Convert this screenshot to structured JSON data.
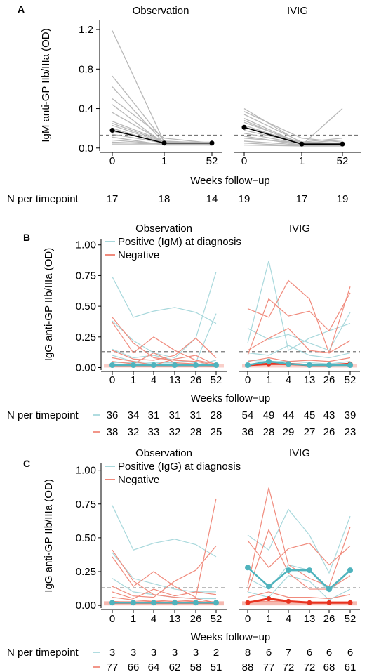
{
  "chart_data": [
    {
      "type": "line",
      "panel": "A",
      "facets": [
        "Observation",
        "IVIG"
      ],
      "xlabel": "Weeks follow−up",
      "ylabel": "IgM anti-GP IIb/IIIa (OD)",
      "x": [
        "0",
        "1",
        "52"
      ],
      "yticks": [
        "0.0",
        "0.4",
        "0.8",
        "1.2"
      ],
      "ylim": [
        -0.03,
        1.3
      ],
      "threshold": 0.13,
      "n_label": "N per timepoint",
      "n_counts": [
        [
          "17",
          "18",
          "14",
          "19",
          "17",
          "19"
        ]
      ],
      "median": {
        "Observation": [
          0.18,
          0.05,
          0.05
        ],
        "IVIG": [
          0.21,
          0.04,
          0.04
        ]
      },
      "individual": {
        "Observation": [
          [
            1.19,
            0.06,
            0.05
          ],
          [
            0.73,
            0.07,
            0.04
          ],
          [
            0.62,
            0.05,
            0.04
          ],
          [
            0.5,
            0.1,
            0.05
          ],
          [
            0.44,
            0.04,
            0.04
          ],
          [
            0.36,
            0.06,
            0.03
          ],
          [
            0.27,
            0.07,
            0.05
          ],
          [
            0.25,
            0.06,
            0.06
          ],
          [
            0.23,
            0.05,
            0.05
          ],
          [
            0.2,
            0.04,
            0.04
          ],
          [
            0.17,
            0.06,
            0.05
          ],
          [
            0.14,
            0.05,
            0.04
          ],
          [
            0.11,
            0.03,
            0.03
          ],
          [
            0.08,
            0.04,
            0.04
          ],
          [
            0.06,
            0.04,
            0.04
          ],
          [
            0.04,
            0.04,
            0.03
          ]
        ],
        "IVIG": [
          [
            0.4,
            0.05,
            0.04
          ],
          [
            0.37,
            0.1,
            0.06
          ],
          [
            0.34,
            0.06,
            0.05
          ],
          [
            0.3,
            0.04,
            0.04
          ],
          [
            0.28,
            0.03,
            0.4
          ],
          [
            0.26,
            0.05,
            0.05
          ],
          [
            0.23,
            0.04,
            0.03
          ],
          [
            0.21,
            0.06,
            0.1
          ],
          [
            0.18,
            0.05,
            0.08
          ],
          [
            0.15,
            0.04,
            0.04
          ],
          [
            0.12,
            0.03,
            0.03
          ],
          [
            0.1,
            0.05,
            0.05
          ],
          [
            0.07,
            0.03,
            0.04
          ],
          [
            0.05,
            0.02,
            0.03
          ],
          [
            0.03,
            0.02,
            0.02
          ]
        ]
      }
    },
    {
      "type": "line",
      "panel": "B",
      "facets": [
        "Observation",
        "IVIG"
      ],
      "xlabel": "Weeks follow−up",
      "ylabel": "IgG anti-GP IIb/IIIa (OD)",
      "x": [
        "0",
        "1",
        "4",
        "13",
        "26",
        "52"
      ],
      "yticks": [
        "0.00",
        "0.25",
        "0.50",
        "0.75",
        "1.00"
      ],
      "ylim": [
        -0.02,
        1.05
      ],
      "threshold": 0.13,
      "legend_placement": "top-left",
      "series": [
        {
          "name": "Positive (IgM) at diagnosis",
          "color": "#a8d8dc"
        },
        {
          "name": "Negative",
          "color": "#f08a7c"
        }
      ],
      "n_label": "N per timepoint",
      "n_counts": [
        [
          "36",
          "34",
          "31",
          "31",
          "31",
          "28",
          "54",
          "49",
          "44",
          "45",
          "43",
          "39"
        ],
        [
          "38",
          "32",
          "33",
          "32",
          "28",
          "25",
          "36",
          "28",
          "29",
          "27",
          "26",
          "23"
        ]
      ],
      "median": {
        "Observation": {
          "pos": [
            0.02,
            0.02,
            0.02,
            0.02,
            0.02,
            0.02
          ],
          "neg": [
            0.02,
            0.02,
            0.02,
            0.02,
            0.02,
            0.02
          ]
        },
        "IVIG": {
          "pos": [
            0.02,
            0.05,
            0.03,
            0.02,
            0.02,
            0.02
          ],
          "neg": [
            0.02,
            0.03,
            0.03,
            0.02,
            0.02,
            0.03
          ]
        }
      },
      "individual": {
        "Observation": {
          "pos": [
            [
              0.74,
              0.41,
              0.46,
              0.49,
              0.45,
              0.36
            ],
            [
              0.38,
              0.22,
              0.12,
              0.08,
              0.24,
              0.78
            ],
            [
              0.15,
              0.08,
              0.1,
              0.06,
              0.04,
              0.44
            ],
            [
              0.1,
              0.05,
              0.04,
              0.04,
              0.02,
              0.02
            ],
            [
              0.04,
              0.04,
              0.03,
              0.03,
              0.03,
              0.02
            ],
            [
              0.02,
              0.03,
              0.02,
              0.02,
              0.02,
              0.06
            ]
          ],
          "neg": [
            [
              0.41,
              0.2,
              0.08,
              0.06,
              0.05,
              0.02
            ],
            [
              0.37,
              0.12,
              0.25,
              0.14,
              0.06,
              0.03
            ],
            [
              0.14,
              0.07,
              0.06,
              0.1,
              0.24,
              0.08
            ],
            [
              0.08,
              0.05,
              0.02,
              0.07,
              0.1,
              0.02
            ],
            [
              0.05,
              0.03,
              0.12,
              0.04,
              0.03,
              0.02
            ],
            [
              0.03,
              0.02,
              0.02,
              0.03,
              0.02,
              0.01
            ]
          ]
        },
        "IVIG": {
          "pos": [
            [
              0.2,
              0.87,
              0.14,
              0.24,
              0.3,
              0.36
            ],
            [
              0.32,
              0.23,
              0.27,
              0.2,
              0.14,
              0.45
            ],
            [
              0.12,
              0.1,
              0.18,
              0.1,
              0.08,
              0.12
            ],
            [
              0.06,
              0.05,
              0.05,
              0.04,
              0.03,
              0.05
            ],
            [
              0.03,
              0.02,
              0.03,
              0.02,
              0.02,
              0.02
            ]
          ],
          "neg": [
            [
              0.48,
              0.41,
              0.71,
              0.56,
              0.12,
              0.66
            ],
            [
              0.1,
              0.56,
              0.42,
              0.46,
              0.3,
              0.61
            ],
            [
              0.14,
              0.24,
              0.32,
              0.14,
              0.12,
              0.22
            ],
            [
              0.05,
              0.08,
              0.05,
              0.06,
              0.05,
              0.08
            ],
            [
              0.02,
              0.03,
              0.02,
              0.02,
              0.02,
              0.02
            ]
          ]
        }
      }
    },
    {
      "type": "line",
      "panel": "C",
      "facets": [
        "Observation",
        "IVIG"
      ],
      "xlabel": "Weeks follow−up",
      "ylabel": "IgG anti-GP IIb/IIIa (OD)",
      "x": [
        "0",
        "1",
        "4",
        "13",
        "26",
        "52"
      ],
      "yticks": [
        "0.00",
        "0.25",
        "0.50",
        "0.75",
        "1.00"
      ],
      "ylim": [
        -0.02,
        1.05
      ],
      "threshold": 0.13,
      "legend_placement": "top-left",
      "series": [
        {
          "name": "Positive (IgG) at diagnosis",
          "color": "#a8d8dc"
        },
        {
          "name": "Negative",
          "color": "#f08a7c"
        }
      ],
      "n_label": "N per timepoint",
      "n_counts": [
        [
          "3",
          "3",
          "3",
          "3",
          "3",
          "2",
          "8",
          "6",
          "7",
          "6",
          "6",
          "6"
        ],
        [
          "77",
          "66",
          "64",
          "62",
          "58",
          "51",
          "88",
          "77",
          "72",
          "72",
          "68",
          "61"
        ]
      ],
      "median": {
        "Observation": {
          "pos": [
            0.02,
            0.02,
            0.02,
            0.02,
            0.02,
            0.02
          ],
          "neg": [
            0.02,
            0.02,
            0.02,
            0.02,
            0.02,
            0.02
          ]
        },
        "IVIG": {
          "pos": [
            0.28,
            0.14,
            0.26,
            0.26,
            0.12,
            0.26
          ],
          "neg": [
            0.02,
            0.05,
            0.03,
            0.02,
            0.02,
            0.02
          ]
        }
      },
      "individual": {
        "Observation": {
          "pos": [
            [
              0.74,
              0.41,
              0.46,
              0.49,
              0.45,
              0.36
            ],
            [
              0.39,
              0.2,
              0.16,
              0.12,
              0.1,
              0.1
            ],
            [
              0.2,
              0.1,
              0.08,
              0.06,
              0.05,
              0.05
            ]
          ],
          "neg": [
            [
              0.41,
              0.18,
              0.08,
              0.06,
              0.05,
              0.02
            ],
            [
              0.36,
              0.14,
              0.25,
              0.14,
              0.06,
              0.79
            ],
            [
              0.14,
              0.07,
              0.06,
              0.18,
              0.26,
              0.44
            ],
            [
              0.1,
              0.05,
              0.12,
              0.07,
              0.1,
              0.08
            ],
            [
              0.06,
              0.04,
              0.03,
              0.04,
              0.03,
              0.02
            ],
            [
              0.03,
              0.02,
              0.02,
              0.03,
              0.02,
              0.01
            ]
          ]
        },
        "IVIG": {
          "pos": [
            [
              0.52,
              0.41,
              0.71,
              0.52,
              0.24,
              0.66
            ],
            [
              0.2,
              0.12,
              0.3,
              0.26,
              0.1,
              0.26
            ],
            [
              0.1,
              0.06,
              0.22,
              0.18,
              0.04,
              0.12
            ]
          ],
          "neg": [
            [
              0.14,
              0.87,
              0.3,
              0.2,
              0.14,
              0.58
            ],
            [
              0.48,
              0.28,
              0.42,
              0.46,
              0.3,
              0.44
            ],
            [
              0.1,
              0.56,
              0.24,
              0.12,
              0.12,
              0.22
            ],
            [
              0.06,
              0.1,
              0.06,
              0.06,
              0.05,
              0.08
            ],
            [
              0.03,
              0.03,
              0.03,
              0.02,
              0.02,
              0.02
            ]
          ]
        }
      }
    }
  ]
}
